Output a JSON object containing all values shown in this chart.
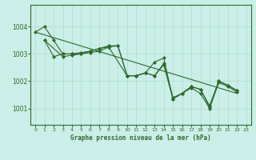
{
  "title": "Graphe pression niveau de la mer (hPa)",
  "background_color": "#cceee8",
  "grid_color": "#aaddcc",
  "line_color": "#2d6a2d",
  "marker_color": "#2d6a2d",
  "xlim": [
    -0.5,
    23.5
  ],
  "ylim": [
    1000.4,
    1004.8
  ],
  "yticks": [
    1001,
    1002,
    1003,
    1004
  ],
  "xticks": [
    0,
    1,
    2,
    3,
    4,
    5,
    6,
    7,
    8,
    9,
    10,
    11,
    12,
    13,
    14,
    15,
    16,
    17,
    18,
    19,
    20,
    21,
    22,
    23
  ],
  "series_with_markers": [
    {
      "x": [
        0,
        1,
        2,
        3,
        4,
        5,
        6,
        7,
        8,
        9,
        10,
        11,
        12,
        13,
        14,
        15,
        16,
        17,
        18,
        19,
        20,
        21,
        22
      ],
      "y": [
        1003.8,
        1004.0,
        1003.5,
        1003.0,
        1003.0,
        1003.0,
        1003.1,
        1003.2,
        1003.3,
        1003.3,
        1002.2,
        1002.2,
        1002.3,
        1002.2,
        1002.65,
        1001.4,
        1001.55,
        1001.8,
        1001.7,
        1001.1,
        1002.0,
        1001.85,
        1001.65
      ]
    },
    {
      "x": [
        1,
        2,
        3,
        4,
        5,
        6,
        7,
        8,
        9,
        10,
        11,
        12,
        13,
        14,
        15,
        16,
        17,
        18,
        19,
        20,
        21,
        22
      ],
      "y": [
        1003.5,
        1002.9,
        1003.0,
        1003.0,
        1003.05,
        1003.1,
        1003.2,
        1003.25,
        1003.3,
        1002.2,
        1002.2,
        1002.3,
        1002.2,
        1002.6,
        1001.35,
        1001.55,
        1001.8,
        1001.7,
        1001.05,
        1002.0,
        1001.85,
        1001.65
      ]
    },
    {
      "x": [
        1,
        3,
        4,
        5,
        6,
        7,
        8,
        10,
        11,
        12,
        13,
        14,
        15,
        16,
        17,
        18,
        19,
        20,
        21,
        22
      ],
      "y": [
        1003.5,
        1002.9,
        1002.95,
        1003.0,
        1003.05,
        1003.1,
        1003.25,
        1002.2,
        1002.2,
        1002.3,
        1002.7,
        1002.85,
        1001.35,
        1001.55,
        1001.75,
        1001.55,
        1001.0,
        1001.95,
        1001.8,
        1001.6
      ]
    }
  ],
  "trend_x": [
    0,
    22
  ],
  "trend_y": [
    1003.8,
    1001.55
  ]
}
